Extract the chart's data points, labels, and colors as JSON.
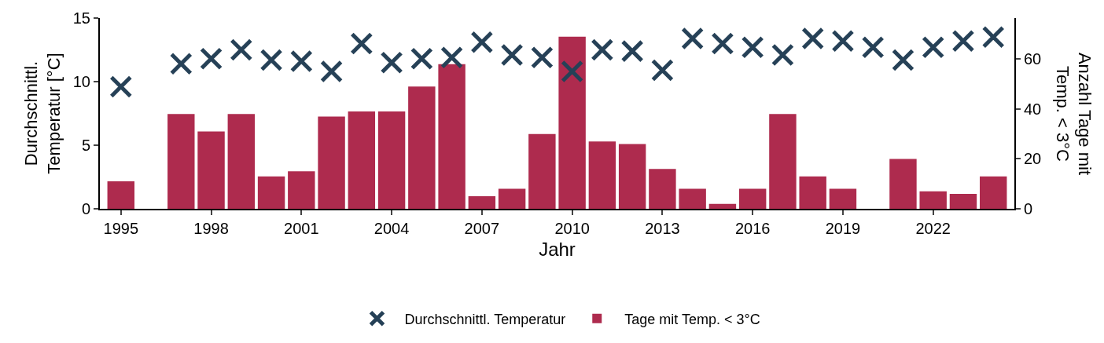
{
  "chart_data": {
    "type": "bar",
    "xlabel": "Jahr",
    "ylabel": "Durchschnittl.\nTemperatur [°C]",
    "y2label": "Anzahl Tage mit\nTemp. < 3°C",
    "x": [
      1995,
      1996,
      1997,
      1998,
      1999,
      2000,
      2001,
      2002,
      2003,
      2004,
      2005,
      2006,
      2007,
      2008,
      2009,
      2010,
      2011,
      2012,
      2013,
      2014,
      2015,
      2016,
      2017,
      2018,
      2019,
      2020,
      2021,
      2022,
      2023,
      2024
    ],
    "series": [
      {
        "name": "Durchschnittl. Temperatur",
        "type": "scatter",
        "marker": "cross",
        "color": "#264157",
        "values": [
          9.6,
          null,
          11.4,
          11.8,
          12.5,
          11.7,
          11.6,
          10.8,
          13.0,
          11.5,
          11.8,
          11.9,
          13.1,
          12.1,
          11.9,
          10.8,
          12.5,
          12.4,
          10.9,
          13.4,
          13.0,
          12.7,
          12.1,
          13.4,
          13.2,
          12.7,
          11.7,
          12.7,
          13.2,
          13.5
        ]
      },
      {
        "name": "Tage mit Temp. < 3°C",
        "axis": "y2",
        "color": "#ae2b4e",
        "values": [
          11,
          null,
          38,
          31,
          38,
          13,
          15,
          37,
          39,
          39,
          49,
          58,
          5,
          8,
          30,
          69,
          27,
          26,
          16,
          8,
          2,
          8,
          38,
          13,
          8,
          null,
          20,
          7,
          6,
          13
        ]
      }
    ],
    "xlim": [
      1994.3,
      2024.7
    ],
    "xticks": [
      1995,
      1998,
      2001,
      2004,
      2007,
      2010,
      2013,
      2016,
      2019,
      2022
    ],
    "ylim": [
      0,
      15
    ],
    "yticks": [
      0,
      5,
      10,
      15
    ],
    "y2lim": [
      0,
      76.5
    ],
    "y2ticks": [
      0,
      20,
      40,
      60
    ],
    "grid": false,
    "legend": "bottom"
  }
}
